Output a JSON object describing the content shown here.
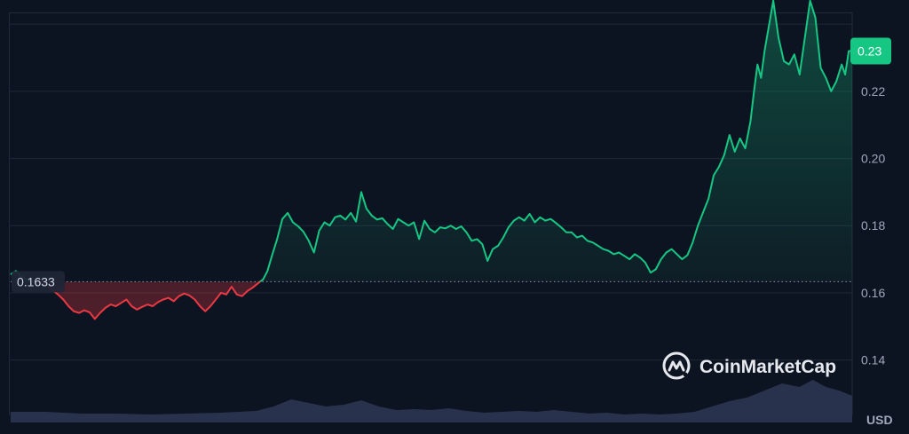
{
  "chart_data": {
    "type": "line",
    "currency": "USD",
    "watermark": "CoinMarketCap",
    "baseline": 0.1633,
    "baseline_label": "0.1633",
    "current_price": 0.232,
    "current_label": "0.23",
    "y_ticks": [
      0.14,
      0.16,
      0.18,
      0.2,
      0.22
    ],
    "y_tick_labels": [
      "0.14",
      "0.16",
      "0.18",
      "0.20",
      "0.22"
    ],
    "ylim": [
      0.1235,
      0.2435
    ],
    "grid": true,
    "colors": {
      "up": "#16c784",
      "down": "#ea3943",
      "volume": "#2c3552",
      "badge": "#16c784",
      "background": "#0d1421"
    },
    "price_series": [
      [
        0,
        0.1655
      ],
      [
        6,
        0.1665
      ],
      [
        12,
        0.1648
      ],
      [
        18,
        0.164
      ],
      [
        24,
        0.1632
      ],
      [
        30,
        0.1634
      ],
      [
        36,
        0.163
      ],
      [
        42,
        0.162
      ],
      [
        48,
        0.1608
      ],
      [
        54,
        0.1595
      ],
      [
        60,
        0.158
      ],
      [
        66,
        0.156
      ],
      [
        72,
        0.1545
      ],
      [
        78,
        0.154
      ],
      [
        84,
        0.1548
      ],
      [
        90,
        0.1542
      ],
      [
        96,
        0.1522
      ],
      [
        102,
        0.154
      ],
      [
        108,
        0.1555
      ],
      [
        114,
        0.1565
      ],
      [
        120,
        0.156
      ],
      [
        126,
        0.157
      ],
      [
        132,
        0.158
      ],
      [
        138,
        0.156
      ],
      [
        144,
        0.155
      ],
      [
        150,
        0.1558
      ],
      [
        156,
        0.1565
      ],
      [
        162,
        0.156
      ],
      [
        168,
        0.1572
      ],
      [
        174,
        0.158
      ],
      [
        180,
        0.1585
      ],
      [
        186,
        0.1575
      ],
      [
        192,
        0.159
      ],
      [
        198,
        0.1598
      ],
      [
        204,
        0.1592
      ],
      [
        210,
        0.158
      ],
      [
        216,
        0.156
      ],
      [
        222,
        0.1545
      ],
      [
        228,
        0.156
      ],
      [
        234,
        0.158
      ],
      [
        240,
        0.16
      ],
      [
        246,
        0.1595
      ],
      [
        252,
        0.1618
      ],
      [
        258,
        0.1595
      ],
      [
        264,
        0.159
      ],
      [
        270,
        0.1605
      ],
      [
        276,
        0.1615
      ],
      [
        282,
        0.1628
      ],
      [
        288,
        0.164
      ],
      [
        293,
        0.1665
      ],
      [
        298,
        0.171
      ],
      [
        304,
        0.176
      ],
      [
        310,
        0.182
      ],
      [
        316,
        0.1838
      ],
      [
        322,
        0.181
      ],
      [
        328,
        0.1798
      ],
      [
        334,
        0.1782
      ],
      [
        340,
        0.1755
      ],
      [
        346,
        0.172
      ],
      [
        352,
        0.1785
      ],
      [
        358,
        0.181
      ],
      [
        364,
        0.18
      ],
      [
        370,
        0.1825
      ],
      [
        376,
        0.183
      ],
      [
        382,
        0.1818
      ],
      [
        388,
        0.1838
      ],
      [
        394,
        0.1812
      ],
      [
        400,
        0.19
      ],
      [
        406,
        0.185
      ],
      [
        412,
        0.183
      ],
      [
        418,
        0.1818
      ],
      [
        424,
        0.1822
      ],
      [
        430,
        0.1805
      ],
      [
        436,
        0.179
      ],
      [
        442,
        0.182
      ],
      [
        448,
        0.181
      ],
      [
        454,
        0.18
      ],
      [
        460,
        0.181
      ],
      [
        466,
        0.176
      ],
      [
        472,
        0.1815
      ],
      [
        478,
        0.179
      ],
      [
        484,
        0.178
      ],
      [
        490,
        0.1795
      ],
      [
        496,
        0.1792
      ],
      [
        502,
        0.18
      ],
      [
        508,
        0.179
      ],
      [
        514,
        0.1798
      ],
      [
        520,
        0.178
      ],
      [
        526,
        0.1755
      ],
      [
        532,
        0.176
      ],
      [
        538,
        0.1745
      ],
      [
        544,
        0.1695
      ],
      [
        550,
        0.173
      ],
      [
        556,
        0.174
      ],
      [
        562,
        0.1765
      ],
      [
        568,
        0.1795
      ],
      [
        574,
        0.1815
      ],
      [
        580,
        0.1825
      ],
      [
        586,
        0.1815
      ],
      [
        592,
        0.1835
      ],
      [
        598,
        0.181
      ],
      [
        604,
        0.1825
      ],
      [
        610,
        0.1815
      ],
      [
        616,
        0.182
      ],
      [
        622,
        0.1808
      ],
      [
        628,
        0.1795
      ],
      [
        634,
        0.178
      ],
      [
        640,
        0.178
      ],
      [
        646,
        0.1765
      ],
      [
        652,
        0.177
      ],
      [
        658,
        0.1755
      ],
      [
        664,
        0.175
      ],
      [
        670,
        0.174
      ],
      [
        676,
        0.173
      ],
      [
        682,
        0.1725
      ],
      [
        688,
        0.1715
      ],
      [
        694,
        0.172
      ],
      [
        700,
        0.171
      ],
      [
        706,
        0.17
      ],
      [
        712,
        0.1715
      ],
      [
        718,
        0.1705
      ],
      [
        724,
        0.169
      ],
      [
        730,
        0.166
      ],
      [
        736,
        0.167
      ],
      [
        742,
        0.17
      ],
      [
        748,
        0.172
      ],
      [
        754,
        0.173
      ],
      [
        760,
        0.1715
      ],
      [
        766,
        0.17
      ],
      [
        772,
        0.1712
      ],
      [
        778,
        0.175
      ],
      [
        784,
        0.18
      ],
      [
        790,
        0.184
      ],
      [
        796,
        0.188
      ],
      [
        802,
        0.195
      ],
      [
        808,
        0.1975
      ],
      [
        814,
        0.201
      ],
      [
        820,
        0.207
      ],
      [
        826,
        0.202
      ],
      [
        832,
        0.206
      ],
      [
        838,
        0.203
      ],
      [
        844,
        0.211
      ],
      [
        848,
        0.22
      ],
      [
        852,
        0.228
      ],
      [
        856,
        0.224
      ],
      [
        860,
        0.232
      ],
      [
        864,
        0.238
      ],
      [
        870,
        0.247
      ],
      [
        876,
        0.236
      ],
      [
        882,
        0.229
      ],
      [
        888,
        0.228
      ],
      [
        894,
        0.231
      ],
      [
        900,
        0.225
      ],
      [
        906,
        0.236
      ],
      [
        912,
        0.247
      ],
      [
        918,
        0.242
      ],
      [
        924,
        0.227
      ],
      [
        930,
        0.224
      ],
      [
        936,
        0.22
      ],
      [
        942,
        0.223
      ],
      [
        948,
        0.228
      ],
      [
        952,
        0.225
      ],
      [
        956,
        0.232
      ],
      [
        960,
        0.232
      ]
    ],
    "volume_series": [
      [
        0,
        0.012
      ],
      [
        40,
        0.012
      ],
      [
        80,
        0.01
      ],
      [
        120,
        0.01
      ],
      [
        160,
        0.009
      ],
      [
        200,
        0.01
      ],
      [
        240,
        0.011
      ],
      [
        280,
        0.013
      ],
      [
        300,
        0.018
      ],
      [
        320,
        0.026
      ],
      [
        340,
        0.022
      ],
      [
        360,
        0.018
      ],
      [
        380,
        0.02
      ],
      [
        400,
        0.025
      ],
      [
        420,
        0.018
      ],
      [
        440,
        0.014
      ],
      [
        460,
        0.015
      ],
      [
        480,
        0.014
      ],
      [
        500,
        0.016
      ],
      [
        520,
        0.013
      ],
      [
        540,
        0.011
      ],
      [
        560,
        0.012
      ],
      [
        580,
        0.013
      ],
      [
        600,
        0.012
      ],
      [
        620,
        0.014
      ],
      [
        640,
        0.012
      ],
      [
        660,
        0.01
      ],
      [
        680,
        0.011
      ],
      [
        700,
        0.009
      ],
      [
        720,
        0.01
      ],
      [
        740,
        0.009
      ],
      [
        760,
        0.01
      ],
      [
        780,
        0.012
      ],
      [
        800,
        0.018
      ],
      [
        820,
        0.024
      ],
      [
        840,
        0.028
      ],
      [
        860,
        0.036
      ],
      [
        880,
        0.044
      ],
      [
        900,
        0.04
      ],
      [
        915,
        0.048
      ],
      [
        930,
        0.04
      ],
      [
        945,
        0.036
      ],
      [
        960,
        0.03
      ]
    ],
    "volume_max": 0.06
  }
}
